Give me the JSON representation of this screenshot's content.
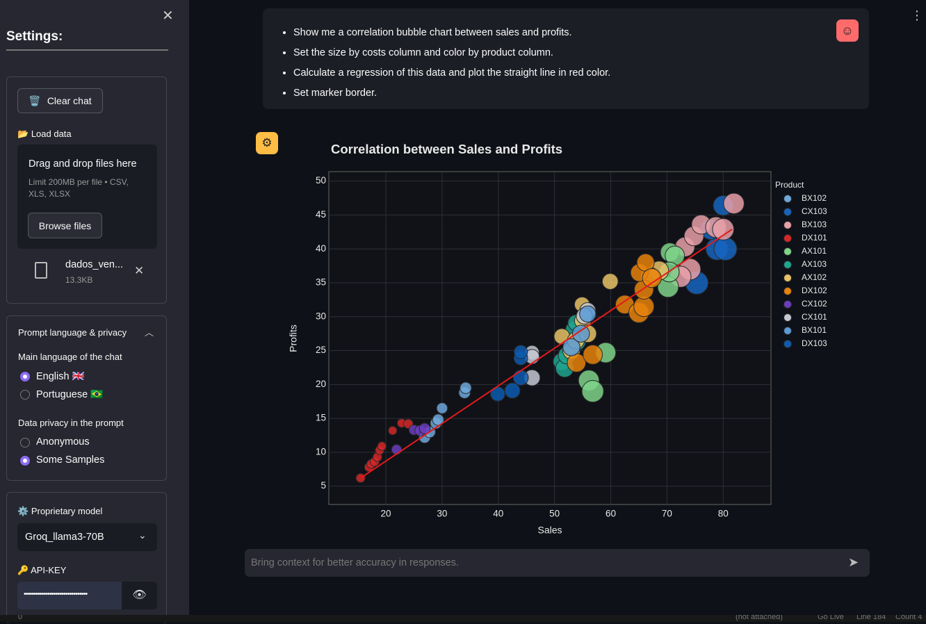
{
  "sidebar": {
    "title": "Settings:",
    "clear_chat": "Clear chat",
    "load_data": "Load data",
    "dropzone_title": "Drag and drop files here",
    "dropzone_hint": "Limit 200MB per file • CSV, XLS, XLSX",
    "browse": "Browse files",
    "file_name": "dados_ven...",
    "file_size": "13.3KB",
    "privacy_section": "Prompt language & privacy",
    "language_label": "Main language of the chat",
    "language_options": [
      "English 🇬🇧",
      "Portuguese 🇧🇷"
    ],
    "privacy_label": "Data privacy in the prompt",
    "privacy_options": [
      "Anonymous",
      "Some Samples"
    ],
    "model_label": "Proprietary model",
    "model_value": "Groq_llama3-70B",
    "api_key_label": "API-KEY",
    "api_key_value": "••••••••••••••••••••••••••••••••"
  },
  "user_message": [
    "Show me a correlation bubble chart between sales and profits.",
    "Set the size by costs column and color by product column.",
    "Calculate a regression of this data and plot the straight line in red color.",
    "Set marker border."
  ],
  "chat_input_placeholder": "Bring context for better accuracy in responses.",
  "status_bar": [
    "0",
    "(not attached)",
    "Go Live",
    "Line 184",
    "Count 4"
  ],
  "chart_data": {
    "type": "scatter",
    "title": "Correlation between Sales and Profits",
    "x_label": "Sales",
    "y_label": "Profits",
    "legend_title": "Product",
    "grid": true,
    "xlim": [
      9.85,
      88.5
    ],
    "ylim": [
      2.3,
      51.4
    ],
    "xticks": [
      20,
      30,
      40,
      50,
      60,
      70,
      80
    ],
    "yticks": [
      5,
      10,
      15,
      20,
      25,
      30,
      35,
      40,
      45,
      50
    ],
    "series": [
      {
        "name": "BX102",
        "color": "#6fa8dc",
        "x": [
          26.9,
          27.8,
          28.9,
          29.3,
          30.0,
          34.0,
          34.2
        ],
        "values": [
          12.2,
          13.0,
          14.3,
          14.8,
          16.5,
          18.8,
          19.5
        ],
        "sizes": [
          14.7,
          14.8,
          14.6,
          14.5,
          13.5,
          15.2,
          14.7
        ]
      },
      {
        "name": "CX103",
        "color": "#1565c0",
        "x": [
          75.3,
          78.9,
          80.4,
          80.0,
          77.8
        ],
        "values": [
          35.0,
          40.0,
          40.0,
          46.4,
          42.9
        ],
        "sizes": [
          40.3,
          38.9,
          40.4,
          33.6,
          34.9
        ]
      },
      {
        "name": "BX103",
        "color": "#e8a0a8",
        "x": [
          74.1,
          72.4,
          73.2,
          74.8,
          76.1,
          78.7,
          80.0,
          81.9
        ],
        "values": [
          37.0,
          35.9,
          40.3,
          41.9,
          43.6,
          43.2,
          42.9,
          46.7
        ],
        "sizes": [
          37.1,
          36.5,
          32.9,
          32.9,
          32.5,
          35.5,
          37.1,
          35.2
        ]
      },
      {
        "name": "DX101",
        "color": "#d62728",
        "x": [
          15.5,
          17.0,
          17.4,
          18.0,
          18.5,
          18.9,
          19.3,
          21.2,
          22.8,
          24.0
        ],
        "values": [
          6.2,
          7.8,
          8.3,
          8.6,
          9.3,
          10.3,
          10.9,
          13.2,
          14.3,
          14.2
        ],
        "sizes": [
          9.3,
          9.2,
          9.1,
          9.4,
          9.2,
          8.6,
          8.4,
          8.0,
          8.5,
          9.8
        ]
      },
      {
        "name": "AX101",
        "color": "#7ed48a",
        "x": [
          56.1,
          56.8,
          59.1,
          70.2,
          70.5,
          71.4,
          70.4
        ],
        "values": [
          20.6,
          19.0,
          24.7,
          34.4,
          39.5,
          39.0,
          36.6
        ],
        "sizes": [
          35.5,
          37.8,
          34.4,
          35.8,
          31.0,
          32.4,
          33.8
        ]
      },
      {
        "name": "AX103",
        "color": "#1fa58f",
        "x": [
          51.3,
          51.8,
          52.2,
          53.4,
          53.8,
          54.0
        ],
        "values": [
          23.4,
          22.4,
          24.3,
          28.1,
          29.1,
          26.3
        ],
        "sizes": [
          27.9,
          29.4,
          27.9,
          25.3,
          24.7,
          27.7
        ]
      },
      {
        "name": "AX102",
        "color": "#e8c266",
        "x": [
          51.3,
          53.0,
          53.8,
          54.9,
          55.0,
          55.9,
          59.9,
          68.6,
          67.0
        ],
        "values": [
          27.1,
          25.0,
          26.5,
          31.8,
          29.4,
          27.5,
          35.2,
          36.8,
          35.9
        ],
        "sizes": [
          24.2,
          28.0,
          27.3,
          23.1,
          25.6,
          28.4,
          24.7,
          31.8,
          31.1
        ]
      },
      {
        "name": "DX102",
        "color": "#e8820c",
        "x": [
          53.9,
          56.8,
          62.5,
          65.0,
          65.9,
          65.9,
          65.1,
          66.2,
          67.3
        ],
        "values": [
          23.2,
          24.4,
          31.8,
          30.6,
          31.5,
          34.0,
          36.5,
          38.0,
          35.7
        ],
        "sizes": [
          30.7,
          32.4,
          30.7,
          34.4,
          34.4,
          31.9,
          28.6,
          28.2,
          31.6
        ]
      },
      {
        "name": "CX102",
        "color": "#6a3dbe",
        "x": [
          21.9,
          25.0,
          26.1,
          26.9
        ],
        "values": [
          10.4,
          13.3,
          13.2,
          13.5
        ],
        "sizes": [
          11.5,
          11.7,
          12.9,
          13.4
        ]
      },
      {
        "name": "CX101",
        "color": "#c4c8d4",
        "x": [
          46.0,
          46.0,
          46.0,
          55.9,
          55.3
        ],
        "values": [
          24.7,
          24.1,
          21.0,
          30.9,
          30.1
        ],
        "sizes": [
          21.3,
          21.9,
          25.0,
          25.0,
          25.2
        ]
      },
      {
        "name": "BX101",
        "color": "#5b9bd5",
        "x": [
          53.0,
          54.7,
          55.9
        ],
        "values": [
          25.5,
          27.5,
          30.4
        ],
        "sizes": [
          27.5,
          27.2,
          25.5
        ]
      },
      {
        "name": "DX103",
        "color": "#0d5cb0",
        "x": [
          39.9,
          42.5,
          44.0,
          44.0,
          44.0
        ],
        "values": [
          18.6,
          19.1,
          21.0,
          23.9,
          24.8
        ],
        "sizes": [
          21.3,
          23.4,
          23.0,
          20.1,
          19.2
        ]
      }
    ],
    "regression": {
      "color": "#e31a1c",
      "x": [
        15.5,
        81.6
      ],
      "values": [
        6.2,
        42.9
      ]
    }
  }
}
